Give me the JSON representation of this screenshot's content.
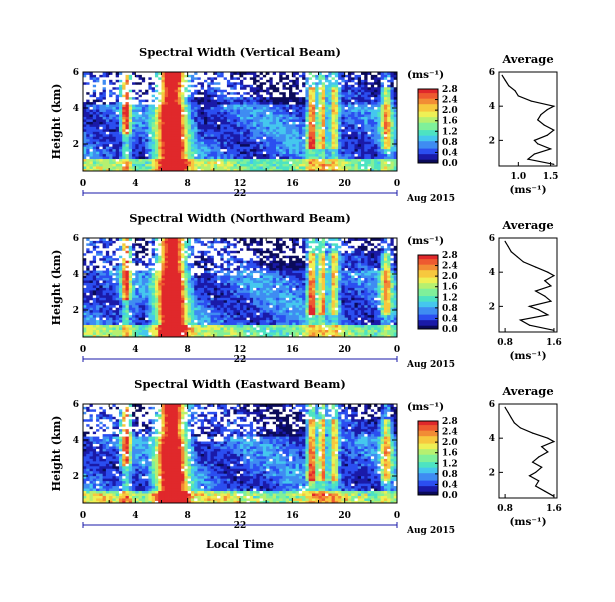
{
  "figure": {
    "xlabel": "Local Time",
    "date_label": "Aug 2015",
    "day_label": "22",
    "ylabel": "Height (km)",
    "cbar_unit": "(ms⁻¹)",
    "avg_title": "Average",
    "avg_xlabel": "(ms⁻¹)"
  },
  "colors": {
    "colormap": [
      "#0b0b5a",
      "#1a1aa8",
      "#2b4ef0",
      "#3f8cf2",
      "#45c7ee",
      "#4de3c2",
      "#7ff09a",
      "#b6f070",
      "#eef055",
      "#f7c83e",
      "#f28c35",
      "#ee5a30",
      "#e0282b"
    ],
    "missing": "#ffffff"
  },
  "chart_data": [
    {
      "type": "heatmap",
      "title": "Spectral Width (Vertical Beam)",
      "x_ticks": [
        "0",
        "4",
        "8",
        "12",
        "16",
        "20",
        "0"
      ],
      "xlim": [
        0,
        24
      ],
      "y_ticks": [
        "2",
        "4",
        "6"
      ],
      "ylim": [
        0.5,
        6
      ],
      "colorbar_ticks": [
        "0.0",
        "0.4",
        "0.8",
        "1.2",
        "1.6",
        "2.0",
        "2.4",
        "2.8"
      ],
      "colorbar_range": [
        0,
        2.8
      ],
      "avg_profile": {
        "x_ticks": [
          "1.0",
          "1.5"
        ],
        "xlim": [
          0.7,
          1.6
        ],
        "y_ticks": [
          "2",
          "4",
          "6"
        ],
        "height_km": [
          0.6,
          0.9,
          1.2,
          1.5,
          1.8,
          2.0,
          2.3,
          2.6,
          2.9,
          3.2,
          3.5,
          3.8,
          4.0,
          4.3,
          4.6,
          4.9,
          5.2,
          5.5,
          5.8
        ],
        "width": [
          1.55,
          1.15,
          1.25,
          1.5,
          1.3,
          1.25,
          1.45,
          1.55,
          1.4,
          1.3,
          1.35,
          1.45,
          1.55,
          1.2,
          1.0,
          0.95,
          0.85,
          0.8,
          0.75
        ]
      }
    },
    {
      "type": "heatmap",
      "title": "Spectral Width (Northward Beam)",
      "x_ticks": [
        "0",
        "4",
        "8",
        "12",
        "16",
        "20",
        "0"
      ],
      "xlim": [
        0,
        24
      ],
      "y_ticks": [
        "2",
        "4",
        "6"
      ],
      "ylim": [
        0.5,
        6
      ],
      "colorbar_ticks": [
        "0.0",
        "0.4",
        "0.8",
        "1.2",
        "1.6",
        "2.0",
        "2.4",
        "2.8"
      ],
      "colorbar_range": [
        0,
        2.8
      ],
      "avg_profile": {
        "x_ticks": [
          "0.8",
          "1.6"
        ],
        "xlim": [
          0.7,
          1.65
        ],
        "y_ticks": [
          "2",
          "4",
          "6"
        ],
        "height_km": [
          0.6,
          0.9,
          1.2,
          1.5,
          1.8,
          2.0,
          2.3,
          2.6,
          2.9,
          3.2,
          3.5,
          3.8,
          4.0,
          4.3,
          4.6,
          4.9,
          5.2,
          5.5,
          5.8
        ],
        "width": [
          1.6,
          1.2,
          1.05,
          1.5,
          1.35,
          1.2,
          1.55,
          1.45,
          1.3,
          1.55,
          1.45,
          1.6,
          1.5,
          1.3,
          1.1,
          1.0,
          0.9,
          0.85,
          0.8
        ]
      }
    },
    {
      "type": "heatmap",
      "title": "Spectral Width (Eastward Beam)",
      "x_ticks": [
        "0",
        "4",
        "8",
        "12",
        "16",
        "20",
        "0"
      ],
      "xlim": [
        0,
        24
      ],
      "y_ticks": [
        "2",
        "4",
        "6"
      ],
      "ylim": [
        0.5,
        6
      ],
      "colorbar_ticks": [
        "0.0",
        "0.4",
        "0.8",
        "1.2",
        "1.6",
        "2.0",
        "2.4",
        "2.8"
      ],
      "colorbar_range": [
        0,
        2.8
      ],
      "avg_profile": {
        "x_ticks": [
          "0.8",
          "1.6"
        ],
        "xlim": [
          0.7,
          1.65
        ],
        "y_ticks": [
          "2",
          "4",
          "6"
        ],
        "height_km": [
          0.6,
          0.9,
          1.2,
          1.5,
          1.8,
          2.0,
          2.3,
          2.6,
          2.9,
          3.2,
          3.5,
          3.8,
          4.0,
          4.3,
          4.6,
          4.9,
          5.2,
          5.5,
          5.8
        ],
        "width": [
          1.6,
          1.45,
          1.3,
          1.35,
          1.2,
          1.3,
          1.4,
          1.25,
          1.35,
          1.5,
          1.4,
          1.6,
          1.5,
          1.25,
          1.05,
          0.95,
          0.9,
          0.85,
          0.8
        ]
      }
    }
  ]
}
